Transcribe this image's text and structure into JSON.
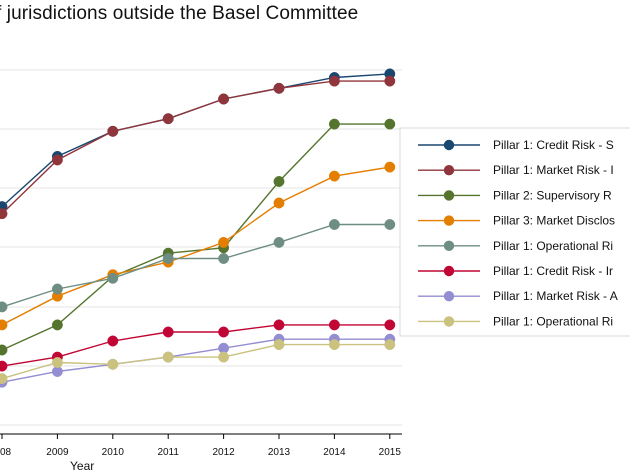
{
  "chart_data": {
    "type": "line",
    "title": "f jurisdictions outside the Basel Committee",
    "xlabel": "Year",
    "ylabel": "",
    "x": [
      2008,
      2009,
      2010,
      2011,
      2012,
      2013,
      2014,
      2015
    ],
    "x_tick_labels": [
      "08",
      "2009",
      "2010",
      "2011",
      "2012",
      "2013",
      "2014",
      "2015"
    ],
    "xlim": [
      2007.98,
      2015.22
    ],
    "ylim": [
      0,
      100
    ],
    "grid": true,
    "legend_position": "right",
    "series": [
      {
        "name": "Pillar 1: Credit Risk - S",
        "color": "#1a476f",
        "values": [
          64,
          78,
          85,
          88.5,
          94,
          97,
          100,
          101
        ]
      },
      {
        "name": "Pillar 1: Market Risk - I",
        "color": "#90353b",
        "values": [
          62,
          77,
          85,
          88.5,
          94,
          97,
          99,
          99
        ]
      },
      {
        "name": "Pillar 2: Supervisory R",
        "color": "#55752f",
        "values": [
          24,
          31,
          44.5,
          51,
          52.5,
          71,
          87,
          87
        ]
      },
      {
        "name": "Pillar 3: Market Disclos",
        "color": "#e37e00",
        "values": [
          31,
          39,
          45,
          48.5,
          54,
          65,
          72.5,
          75
        ]
      },
      {
        "name": "Pillar 1: Operational Ri",
        "color": "#6e8e84",
        "values": [
          36,
          41,
          44,
          49.5,
          49.5,
          54,
          59,
          59
        ]
      },
      {
        "name": "Pillar 1: Credit Risk - Ir",
        "color": "#c10534",
        "values": [
          19.5,
          22,
          26.5,
          29,
          29,
          31,
          31,
          31
        ]
      },
      {
        "name": "Pillar 1: Market Risk - A",
        "color": "#938dd2",
        "values": [
          15,
          18,
          20,
          22,
          24.5,
          27,
          27,
          27
        ]
      },
      {
        "name": "Pillar 1: Operational Ri",
        "color": "#cac27e",
        "values": [
          16,
          20.5,
          20,
          22,
          22,
          25.5,
          25.5,
          25.5
        ]
      }
    ]
  }
}
